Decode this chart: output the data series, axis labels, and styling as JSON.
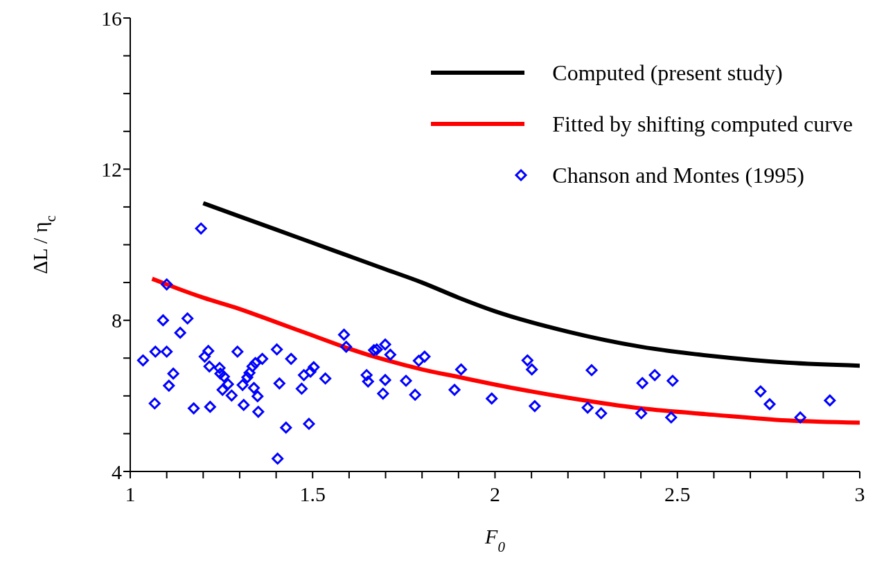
{
  "chart_data": {
    "type": "line",
    "xlabel": "F$_{0}$",
    "ylabel": "ΔL / η$_{c}$",
    "xlim": [
      1,
      3
    ],
    "ylim": [
      4,
      16
    ],
    "xticks": [
      1,
      {
        "value": 1.1,
        "label": null
      },
      {
        "value": 1.2,
        "label": null
      },
      {
        "value": 1.3,
        "label": null
      },
      {
        "value": 1.4,
        "label": null
      },
      1.5,
      {
        "value": 1.6,
        "label": null
      },
      {
        "value": 1.7,
        "label": null
      },
      {
        "value": 1.8,
        "label": null
      },
      {
        "value": 1.9,
        "label": null
      },
      2,
      {
        "value": 2.1,
        "label": null
      },
      {
        "value": 2.2,
        "label": null
      },
      {
        "value": 2.3,
        "label": null
      },
      {
        "value": 2.4,
        "label": null
      },
      2.5,
      {
        "value": 2.6,
        "label": null
      },
      {
        "value": 2.7,
        "label": null
      },
      {
        "value": 2.8,
        "label": null
      },
      {
        "value": 2.9,
        "label": null
      },
      3
    ],
    "yticks": [
      4,
      {
        "value": 5,
        "label": null
      },
      {
        "value": 6,
        "label": null
      },
      {
        "value": 7,
        "label": null
      },
      8,
      {
        "value": 9,
        "label": null
      },
      {
        "value": 10,
        "label": null
      },
      {
        "value": 11,
        "label": null
      },
      12,
      {
        "value": 13,
        "label": null
      },
      {
        "value": 14,
        "label": null
      },
      {
        "value": 15,
        "label": null
      },
      16
    ],
    "grid": false,
    "legend": "top right",
    "series": [
      {
        "name": "Computed (present study)",
        "color": "#000000",
        "line_style": "solid",
        "x": [
          1.2,
          1.3,
          1.4,
          1.5,
          1.6,
          1.7,
          1.8,
          1.9,
          2.0,
          2.2,
          2.4,
          2.6,
          2.8,
          3.0
        ],
        "values": [
          11.1,
          10.75,
          10.4,
          10.05,
          9.7,
          9.35,
          9.0,
          8.6,
          8.24,
          7.7,
          7.3,
          7.05,
          6.88,
          6.8
        ]
      },
      {
        "name": "Fitted by shifting computed curve",
        "color": "#ff0000",
        "line_style": "solid",
        "x": [
          1.06,
          1.1,
          1.2,
          1.3,
          1.4,
          1.5,
          1.6,
          1.7,
          1.8,
          1.9,
          2.0,
          2.2,
          2.4,
          2.6,
          2.8,
          3.0
        ],
        "values": [
          9.1,
          8.95,
          8.6,
          8.3,
          7.95,
          7.6,
          7.25,
          6.95,
          6.7,
          6.5,
          6.3,
          5.95,
          5.67,
          5.5,
          5.35,
          5.29
        ]
      },
      {
        "name": "Chanson and Montes (1995)",
        "type": "scatter",
        "color": "#0000ff",
        "marker": "diamond",
        "x": [
          1.035,
          1.067,
          1.069,
          1.09,
          1.1,
          1.1,
          1.106,
          1.118,
          1.137,
          1.157,
          1.174,
          1.194,
          1.204,
          1.214,
          1.219,
          1.217,
          1.245,
          1.247,
          1.253,
          1.257,
          1.268,
          1.278,
          1.294,
          1.308,
          1.311,
          1.321,
          1.327,
          1.335,
          1.339,
          1.343,
          1.351,
          1.349,
          1.362,
          1.402,
          1.409,
          1.427,
          1.441,
          1.404,
          1.47,
          1.476,
          1.49,
          1.494,
          1.503,
          1.535,
          1.586,
          1.592,
          1.648,
          1.652,
          1.668,
          1.676,
          1.693,
          1.699,
          1.699,
          1.713,
          1.756,
          1.781,
          1.791,
          1.807,
          1.889,
          1.907,
          1.991,
          2.089,
          2.101,
          2.109,
          2.254,
          2.265,
          2.291,
          2.401,
          2.404,
          2.438,
          2.487,
          2.483,
          2.728,
          2.753,
          2.837,
          2.918
        ],
        "values": [
          6.94,
          5.8,
          7.17,
          8.0,
          8.95,
          7.17,
          6.27,
          6.59,
          7.67,
          8.05,
          5.67,
          10.43,
          7.04,
          7.19,
          5.71,
          6.78,
          6.74,
          6.59,
          6.16,
          6.51,
          6.31,
          6.01,
          7.17,
          6.29,
          5.76,
          6.49,
          6.61,
          6.78,
          6.21,
          6.87,
          5.58,
          5.99,
          6.98,
          7.23,
          6.33,
          5.16,
          6.98,
          4.34,
          6.19,
          6.55,
          5.26,
          6.64,
          6.76,
          6.46,
          7.62,
          7.3,
          6.55,
          6.38,
          7.21,
          7.23,
          6.06,
          6.42,
          7.36,
          7.09,
          6.4,
          6.03,
          6.93,
          7.04,
          6.16,
          6.7,
          5.93,
          6.94,
          6.7,
          5.73,
          5.69,
          6.68,
          5.54,
          5.54,
          6.34,
          6.55,
          6.4,
          5.43,
          6.12,
          5.78,
          5.43,
          5.88
        ]
      }
    ]
  }
}
